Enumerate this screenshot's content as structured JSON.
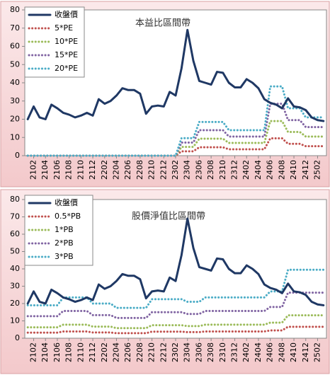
{
  "chart_data": [
    {
      "type": "line",
      "title": "本益比區間帶",
      "categories": [
        null,
        "2102",
        null,
        "2104",
        null,
        "2106",
        null,
        "2108",
        null,
        "2110",
        null,
        "2112",
        null,
        "2202",
        null,
        "2204",
        null,
        "2206",
        null,
        "2208",
        null,
        "2210",
        null,
        "2212",
        null,
        "2302",
        null,
        "2304",
        null,
        "2306",
        null,
        "2308",
        null,
        "2310",
        null,
        "2312",
        null,
        "2402",
        null,
        "2404",
        null,
        "2406",
        null,
        "2408",
        null,
        "2410",
        null,
        "2412",
        null,
        "2502",
        null
      ],
      "ylim": [
        0,
        80
      ],
      "yticks": [
        0,
        10,
        20,
        30,
        40,
        50,
        60,
        70,
        80
      ],
      "legend": "upper left",
      "series": [
        {
          "name": "收盤價",
          "color": "#1f3864",
          "line_style": "solid",
          "values": [
            20,
            27,
            21,
            20,
            28,
            26,
            23.5,
            22.5,
            21,
            22,
            23.5,
            22,
            31,
            28.5,
            30,
            33,
            37,
            36,
            36,
            34,
            23,
            27,
            27.5,
            27,
            35,
            33,
            48,
            69,
            52,
            41,
            40,
            39,
            46,
            45.5,
            40,
            37.5,
            37.5,
            42,
            40,
            37,
            31,
            29,
            28,
            26,
            31.5,
            27,
            26.5,
            25,
            21,
            19.5,
            19
          ]
        },
        {
          "name": "5*PE",
          "color": "#c0504d",
          "line_style": "dotted",
          "values": [
            0,
            0,
            0,
            0,
            0,
            0,
            0,
            0,
            0,
            0,
            0,
            0,
            0,
            0,
            0,
            0,
            0,
            0,
            0,
            0,
            0,
            0,
            0,
            0,
            0,
            0,
            2.4,
            2.4,
            2.4,
            4.6,
            4.6,
            4.6,
            4.6,
            4.6,
            3.5,
            3.5,
            3.5,
            3.5,
            3.5,
            3.5,
            3.5,
            9.5,
            9.5,
            9.5,
            6.5,
            6.5,
            6.5,
            5.2,
            5.2,
            5.2,
            5.2
          ]
        },
        {
          "name": "10*PE",
          "color": "#9bbb59",
          "line_style": "dotted",
          "values": [
            0,
            0,
            0,
            0,
            0,
            0,
            0,
            0,
            0,
            0,
            0,
            0,
            0,
            0,
            0,
            0,
            0,
            0,
            0,
            0,
            0,
            0,
            0,
            0,
            0,
            0,
            4.8,
            4.8,
            4.8,
            9.3,
            9.3,
            9.3,
            9.3,
            9.3,
            7,
            7,
            7,
            7,
            7,
            7,
            7,
            19,
            19,
            19,
            13,
            13,
            13,
            10.5,
            10.5,
            10.5,
            10.5
          ]
        },
        {
          "name": "15*PE",
          "color": "#8064a2",
          "line_style": "dotted",
          "values": [
            0,
            0,
            0,
            0,
            0,
            0,
            0,
            0,
            0,
            0,
            0,
            0,
            0,
            0,
            0,
            0,
            0,
            0,
            0,
            0,
            0,
            0,
            0,
            0,
            0,
            0,
            7.2,
            7.2,
            7.2,
            14,
            14,
            14,
            14,
            14,
            10.5,
            10.5,
            10.5,
            10.5,
            10.5,
            10.5,
            10.5,
            28.5,
            28.5,
            28.5,
            19.5,
            19.5,
            19.5,
            15.7,
            15.7,
            15.7,
            15.7
          ]
        },
        {
          "name": "20*PE",
          "color": "#4bacc6",
          "line_style": "dotted",
          "values": [
            0,
            0,
            0,
            0,
            0,
            0,
            0,
            0,
            0,
            0,
            0,
            0,
            0,
            0,
            0,
            0,
            0,
            0,
            0,
            0,
            0,
            0,
            0,
            0,
            0,
            0,
            9.6,
            9.6,
            9.6,
            18.5,
            18.5,
            18.5,
            18.5,
            18.5,
            14,
            14,
            14,
            14,
            14,
            14,
            14,
            38,
            38,
            38,
            26,
            26,
            26,
            21,
            21,
            21,
            21
          ]
        }
      ]
    },
    {
      "type": "line",
      "title": "股價淨值比區間帶",
      "categories": [
        null,
        "2102",
        null,
        "2104",
        null,
        "2106",
        null,
        "2108",
        null,
        "2110",
        null,
        "2112",
        null,
        "2202",
        null,
        "2204",
        null,
        "2206",
        null,
        "2208",
        null,
        "2210",
        null,
        "2212",
        null,
        "2302",
        null,
        "2304",
        null,
        "2306",
        null,
        "2308",
        null,
        "2310",
        null,
        "2312",
        null,
        "2402",
        null,
        "2404",
        null,
        "2406",
        null,
        "2408",
        null,
        "2410",
        null,
        "2412",
        null,
        "2502",
        null
      ],
      "ylim": [
        0,
        80
      ],
      "yticks": [
        0,
        10,
        20,
        30,
        40,
        50,
        60,
        70,
        80
      ],
      "legend": "upper left",
      "series": [
        {
          "name": "收盤價",
          "color": "#1f3864",
          "line_style": "solid",
          "values": [
            20,
            27,
            21,
            20,
            28,
            26,
            23.5,
            22.5,
            21,
            22,
            23.5,
            22,
            31,
            28.5,
            30,
            33,
            37,
            36,
            36,
            34,
            23,
            27,
            27.5,
            27,
            35,
            33,
            48,
            69,
            52,
            41,
            40,
            39,
            46,
            45.5,
            40,
            37.5,
            37.5,
            42,
            40,
            37,
            31,
            29,
            28,
            26,
            31.5,
            27,
            26.5,
            25,
            21,
            19.5,
            19
          ]
        },
        {
          "name": "0.5*PB",
          "color": "#c0504d",
          "line_style": "dotted",
          "values": [
            3.2,
            3.2,
            3.2,
            3.2,
            3.2,
            3.2,
            3.9,
            3.9,
            3.9,
            3.9,
            3.9,
            3.3,
            3.3,
            3.3,
            3.3,
            2.9,
            2.9,
            2.9,
            2.9,
            2.9,
            2.9,
            3.8,
            3.8,
            3.8,
            3.8,
            3.8,
            3.8,
            3.5,
            3.5,
            3.5,
            3.9,
            3.9,
            3.9,
            3.9,
            3.9,
            3.9,
            3.9,
            3.9,
            3.9,
            3.9,
            3.9,
            4.5,
            4.5,
            4.5,
            6.6,
            6.6,
            6.6,
            6.6,
            6.6,
            6.6,
            6.6
          ]
        },
        {
          "name": "1*PB",
          "color": "#9bbb59",
          "line_style": "dotted",
          "values": [
            6.3,
            6.3,
            6.3,
            6.3,
            6.3,
            6.3,
            7.8,
            7.8,
            7.8,
            7.8,
            7.8,
            6.7,
            6.7,
            6.7,
            6.7,
            5.8,
            5.8,
            5.8,
            5.8,
            5.8,
            5.8,
            7.5,
            7.5,
            7.5,
            7.5,
            7.5,
            7.5,
            7,
            7,
            7,
            7.8,
            7.8,
            7.8,
            7.8,
            7.8,
            7.8,
            7.8,
            7.8,
            7.8,
            7.8,
            7.8,
            9,
            9,
            9,
            13.2,
            13.2,
            13.2,
            13.2,
            13.2,
            13.2,
            13.2
          ]
        },
        {
          "name": "2*PB",
          "color": "#8064a2",
          "line_style": "dotted",
          "values": [
            12.7,
            12.7,
            12.7,
            12.7,
            12.7,
            12.7,
            15.7,
            15.7,
            15.7,
            15.7,
            15.7,
            13.3,
            13.3,
            13.3,
            13.3,
            11.7,
            11.7,
            11.7,
            11.7,
            11.7,
            11.7,
            15,
            15,
            15,
            15,
            15,
            15,
            14,
            14,
            14,
            15.7,
            15.7,
            15.7,
            15.7,
            15.7,
            15.7,
            15.7,
            15.7,
            15.7,
            15.7,
            15.7,
            18,
            18,
            18,
            26.3,
            26.3,
            26.3,
            26.3,
            26.3,
            26.3,
            26.3
          ]
        },
        {
          "name": "3*PB",
          "color": "#4bacc6",
          "line_style": "dotted",
          "values": [
            19,
            19,
            19,
            19,
            19,
            19,
            23.5,
            23.5,
            23.5,
            23.5,
            23.5,
            20,
            20,
            20,
            20,
            17.5,
            17.5,
            17.5,
            17.5,
            17.5,
            17.5,
            22.5,
            22.5,
            22.5,
            22.5,
            22.5,
            22.5,
            21,
            21,
            21,
            23.5,
            23.5,
            23.5,
            23.5,
            23.5,
            23.5,
            23.5,
            23.5,
            23.5,
            23.5,
            23.5,
            27,
            27,
            27,
            39.5,
            39.5,
            39.5,
            39.5,
            39.5,
            39.5,
            39.5
          ]
        }
      ]
    }
  ]
}
